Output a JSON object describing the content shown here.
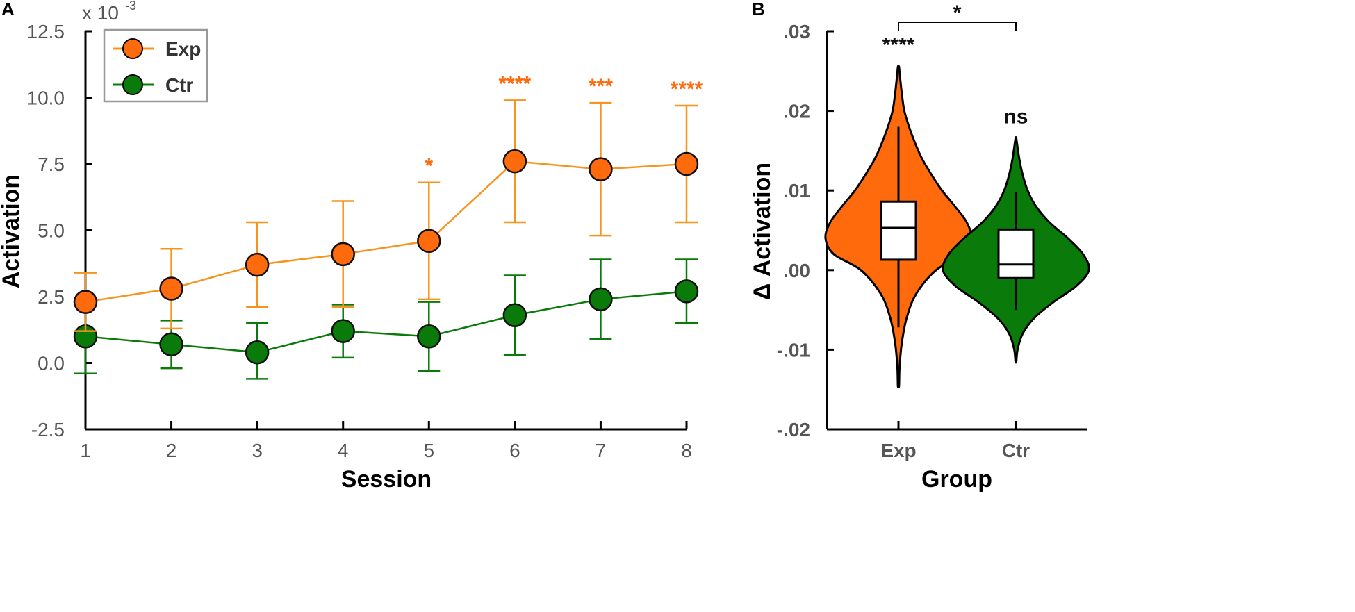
{
  "colors": {
    "exp": "#FF6A0D",
    "exp_line": "#F7941D",
    "ctr": "#0A7A0A",
    "axis": "#000000",
    "legend_border": "#999999"
  },
  "chart_data": [
    {
      "panel": "A",
      "type": "line",
      "xlabel": "Session",
      "ylabel": "Activation",
      "y_multiplier": "x 10",
      "y_exponent": "-3",
      "categories": [
        "1",
        "2",
        "3",
        "4",
        "5",
        "6",
        "7",
        "8"
      ],
      "ylim": [
        -2.5,
        12.5
      ],
      "yticks": [
        "-2.5",
        "0.0",
        "2.5",
        "5.0",
        "7.5",
        "10.0",
        "12.5"
      ],
      "ytick_values": [
        -2.5,
        0,
        2.5,
        5,
        7.5,
        10,
        12.5
      ],
      "legend_position": "top-left",
      "series": [
        {
          "name": "Exp",
          "values": [
            2.3,
            2.8,
            3.7,
            4.1,
            4.6,
            7.6,
            7.3,
            7.5
          ],
          "err_low": [
            1.2,
            1.3,
            2.1,
            2.1,
            2.4,
            5.3,
            4.8,
            5.3
          ],
          "err_high": [
            3.4,
            4.3,
            5.3,
            6.1,
            6.8,
            9.9,
            9.8,
            9.7
          ],
          "significance": [
            "",
            "",
            "",
            "",
            "*",
            "****",
            "***",
            "****"
          ]
        },
        {
          "name": "Ctr",
          "values": [
            1.0,
            0.7,
            0.4,
            1.2,
            1.0,
            1.8,
            2.4,
            2.7
          ],
          "err_low": [
            -0.4,
            -0.2,
            -0.6,
            0.2,
            -0.3,
            0.3,
            0.9,
            1.5
          ],
          "err_high": [
            2.4,
            1.6,
            1.5,
            2.2,
            2.3,
            3.3,
            3.9,
            3.9
          ],
          "significance": [
            "",
            "",
            "",
            "",
            "",
            "",
            "",
            ""
          ]
        }
      ]
    },
    {
      "panel": "B",
      "type": "violin",
      "xlabel": "Group",
      "ylabel": "Δ Activation",
      "ylim": [
        -0.02,
        0.03
      ],
      "yticks": [
        ".03",
        ".02",
        ".01",
        ".00",
        "-.01",
        "-.02"
      ],
      "ytick_values": [
        0.03,
        0.02,
        0.01,
        0.0,
        -0.01,
        -0.02
      ],
      "categories": [
        "Exp",
        "Ctr"
      ],
      "between_groups_significance": "*",
      "groups": [
        {
          "name": "Exp",
          "significance": "****",
          "min": -0.0145,
          "max": 0.0255,
          "whisker_low": -0.0072,
          "whisker_high": 0.018,
          "q1": 0.0013,
          "median": 0.0053,
          "q3": 0.0086,
          "density": [
            [
              -0.0145,
              0.005
            ],
            [
              -0.012,
              0.01
            ],
            [
              -0.009,
              0.03
            ],
            [
              -0.006,
              0.07
            ],
            [
              -0.003,
              0.15
            ],
            [
              0.0,
              0.32
            ],
            [
              0.002,
              0.55
            ],
            [
              0.004,
              0.62
            ],
            [
              0.006,
              0.58
            ],
            [
              0.008,
              0.48
            ],
            [
              0.01,
              0.37
            ],
            [
              0.012,
              0.28
            ],
            [
              0.014,
              0.2
            ],
            [
              0.016,
              0.14
            ],
            [
              0.018,
              0.09
            ],
            [
              0.02,
              0.05
            ],
            [
              0.022,
              0.03
            ],
            [
              0.024,
              0.015
            ],
            [
              0.0255,
              0.005
            ]
          ]
        },
        {
          "name": "Ctr",
          "significance": "ns",
          "min": -0.0115,
          "max": 0.0165,
          "whisker_low": -0.005,
          "whisker_high": 0.0098,
          "q1": -0.001,
          "median": 0.0007,
          "q3": 0.0051,
          "density": [
            [
              -0.0115,
              0.005
            ],
            [
              -0.01,
              0.02
            ],
            [
              -0.008,
              0.08
            ],
            [
              -0.006,
              0.22
            ],
            [
              -0.004,
              0.45
            ],
            [
              -0.002,
              0.72
            ],
            [
              0.0,
              0.87
            ],
            [
              0.002,
              0.8
            ],
            [
              0.004,
              0.62
            ],
            [
              0.006,
              0.4
            ],
            [
              0.008,
              0.24
            ],
            [
              0.01,
              0.14
            ],
            [
              0.012,
              0.08
            ],
            [
              0.014,
              0.04
            ],
            [
              0.0165,
              0.005
            ]
          ]
        }
      ]
    }
  ]
}
